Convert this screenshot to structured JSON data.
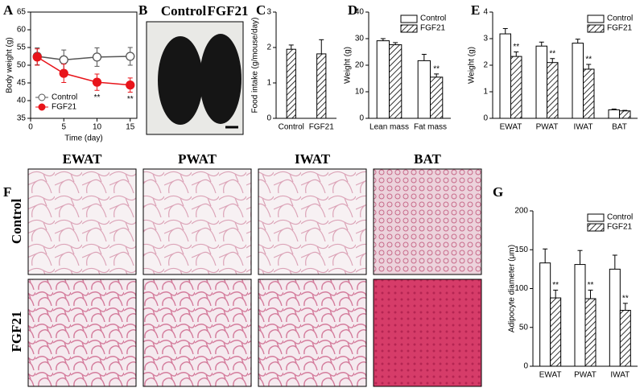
{
  "photo": {
    "panel": "B",
    "labels": [
      "Control",
      "FGF21"
    ]
  },
  "histology": {
    "panel": "F",
    "columns": [
      "EWAT",
      "PWAT",
      "IWAT",
      "BAT"
    ],
    "rows": [
      "Control",
      "FGF21"
    ]
  },
  "chart_data": [
    {
      "panel": "A",
      "type": "line",
      "ylabel": "Body weight (g)",
      "xlabel": "Time (day)",
      "x": [
        1,
        5,
        10,
        15
      ],
      "xlim": [
        0,
        16
      ],
      "xticks": [
        0,
        5,
        10,
        15
      ],
      "ylim": [
        35,
        65
      ],
      "yticks": [
        35,
        40,
        45,
        50,
        55,
        60,
        65
      ],
      "legend": "lower left",
      "series": [
        {
          "name": "Control",
          "color": "#ffffff",
          "line_color": "#555555",
          "values": [
            52.5,
            51.5,
            52.3,
            52.5
          ],
          "errors": [
            2.4,
            2.8,
            2.6,
            2.5
          ]
        },
        {
          "name": "FGF21",
          "color": "#e8141a",
          "line_color": "#e8141a",
          "values": [
            52.3,
            47.7,
            45.2,
            44.4
          ],
          "errors": [
            2.3,
            2.6,
            2.3,
            2.0
          ],
          "annotations": [
            null,
            null,
            "**",
            "**"
          ]
        }
      ]
    },
    {
      "panel": "C",
      "type": "bar",
      "ylabel": "Food intake (g/mouse/day)",
      "categories": [
        "Control",
        "FGF21"
      ],
      "values": [
        1.95,
        1.82
      ],
      "errors": [
        0.12,
        0.4
      ],
      "color": "#000000",
      "pattern": "hatch",
      "ylim": [
        0,
        3
      ],
      "yticks": [
        0,
        1,
        2,
        3
      ]
    },
    {
      "panel": "D",
      "type": "bar",
      "ylabel": "Weight (g)",
      "categories": [
        "Lean mass",
        "Fat mass"
      ],
      "ylim": [
        0,
        40
      ],
      "yticks": [
        0,
        10,
        20,
        30,
        40
      ],
      "legend": "upper right",
      "series": [
        {
          "name": "Control",
          "color": "#000000",
          "pattern": "solid",
          "values": [
            29.2,
            21.7
          ],
          "errors": [
            0.8,
            2.4
          ]
        },
        {
          "name": "FGF21",
          "color": "#000000",
          "pattern": "hatch",
          "values": [
            27.7,
            15.5
          ],
          "errors": [
            0.8,
            1.2
          ],
          "annotations": [
            null,
            "**"
          ]
        }
      ]
    },
    {
      "panel": "E",
      "type": "bar",
      "ylabel": "Weight (g)",
      "categories": [
        "EWAT",
        "PWAT",
        "IWAT",
        "BAT"
      ],
      "ylim": [
        0,
        4
      ],
      "yticks": [
        0,
        1,
        2,
        3,
        4
      ],
      "legend": "upper right",
      "series": [
        {
          "name": "Control",
          "color": "#000000",
          "pattern": "solid",
          "values": [
            3.18,
            2.72,
            2.83,
            0.32
          ],
          "errors": [
            0.2,
            0.15,
            0.15,
            0.03
          ]
        },
        {
          "name": "FGF21",
          "color": "#000000",
          "pattern": "hatch",
          "values": [
            2.33,
            2.1,
            1.85,
            0.28
          ],
          "errors": [
            0.17,
            0.15,
            0.18,
            0.02
          ],
          "annotations": [
            "**",
            "**",
            "**",
            null
          ]
        }
      ]
    },
    {
      "panel": "G",
      "type": "bar",
      "ylabel": "Adipocyte diameter (μm)",
      "categories": [
        "EWAT",
        "PWAT",
        "IWAT"
      ],
      "ylim": [
        0,
        200
      ],
      "yticks": [
        0,
        50,
        100,
        150,
        200
      ],
      "legend": "upper right",
      "series": [
        {
          "name": "Control",
          "color": "#000000",
          "pattern": "solid",
          "values": [
            133,
            131,
            125
          ],
          "errors": [
            18,
            18,
            18
          ]
        },
        {
          "name": "FGF21",
          "color": "#000000",
          "pattern": "hatch",
          "values": [
            88,
            87,
            72
          ],
          "errors": [
            10,
            11,
            9
          ],
          "annotations": [
            "**",
            "**",
            "**"
          ]
        }
      ]
    }
  ]
}
